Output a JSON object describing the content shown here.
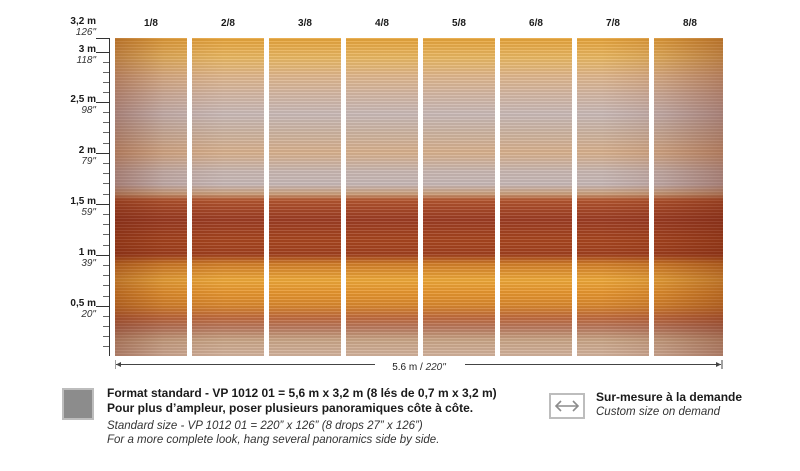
{
  "ruler": {
    "marks": [
      {
        "m": "3,2 m",
        "in": "126\""
      },
      {
        "m": "3 m",
        "in": "118\""
      },
      {
        "m": "2,5 m",
        "in": "98\""
      },
      {
        "m": "2 m",
        "in": "79\""
      },
      {
        "m": "1,5 m",
        "in": "59\""
      },
      {
        "m": "1 m",
        "in": "39\""
      },
      {
        "m": "0,5 m",
        "in": "20\""
      }
    ]
  },
  "strips": [
    "1/8",
    "2/8",
    "3/8",
    "4/8",
    "5/8",
    "6/8",
    "7/8",
    "8/8"
  ],
  "width_dimension": {
    "m": "5.6 m",
    "in": "220\""
  },
  "standard": {
    "fr_line1": "Format standard - VP 1012 01 = 5,6 m x 3,2 m (8 lés de 0,7 m x 3,2 m)",
    "fr_line2": "Pour plus d’ampleur, poser plusieurs panoramiques côte à côte.",
    "en_line1": "Standard size - VP 1012 01 = 220” x 126” (8 drops 27” x 126”)",
    "en_line2": "For a more complete look, hang several panoramics side by side.",
    "swatch_color": "#8c8c8c"
  },
  "custom": {
    "fr": "Sur-mesure à la demande",
    "en": "Custom size on demand",
    "icon": "double-arrow-icon"
  }
}
